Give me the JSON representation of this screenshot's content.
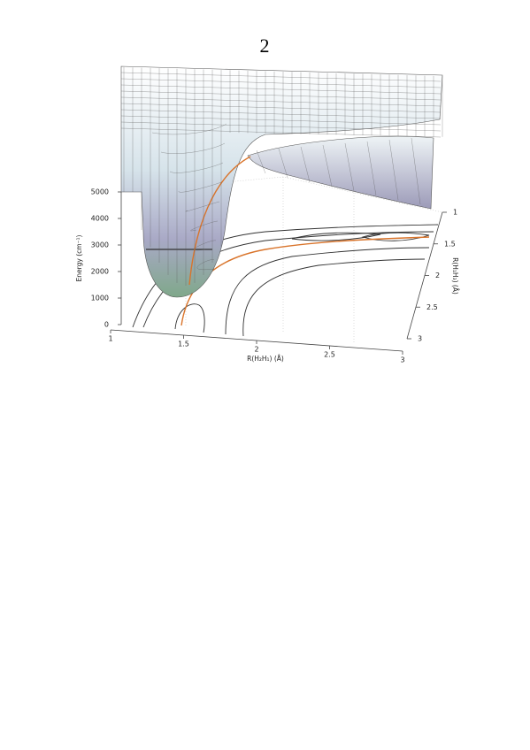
{
  "page_number": "2",
  "figure": {
    "z_axis": {
      "label": "Energy (cm⁻¹)",
      "ticks": [
        0,
        1000,
        2000,
        3000,
        4000,
        5000
      ]
    },
    "x_axis": {
      "label": "R(H₂H₁) (Å)",
      "ticks": [
        1,
        1.5,
        2,
        2.5,
        3
      ]
    },
    "y_axis": {
      "label": "R(H₁H₃) (Å)",
      "ticks": [
        1,
        1.5,
        2,
        2.5,
        3
      ]
    }
  }
}
